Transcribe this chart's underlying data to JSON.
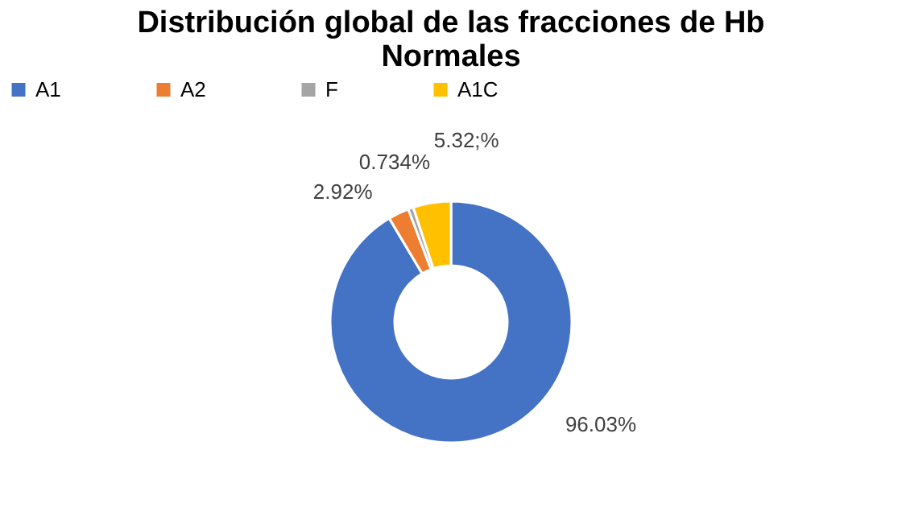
{
  "chart_data": {
    "type": "donut",
    "title": "Distribución global de las fracciones de Hb Normales",
    "categories": [
      "A1",
      "A2",
      "F",
      "A1C"
    ],
    "values": [
      96.03,
      2.92,
      0.734,
      5.32
    ],
    "colors": [
      "#4472c4",
      "#ed7d31",
      "#a5a5a5",
      "#ffc000"
    ],
    "value_labels": [
      "96.03%",
      "2.92%",
      "0.734%",
      "5.32;%"
    ],
    "legend": "top"
  }
}
